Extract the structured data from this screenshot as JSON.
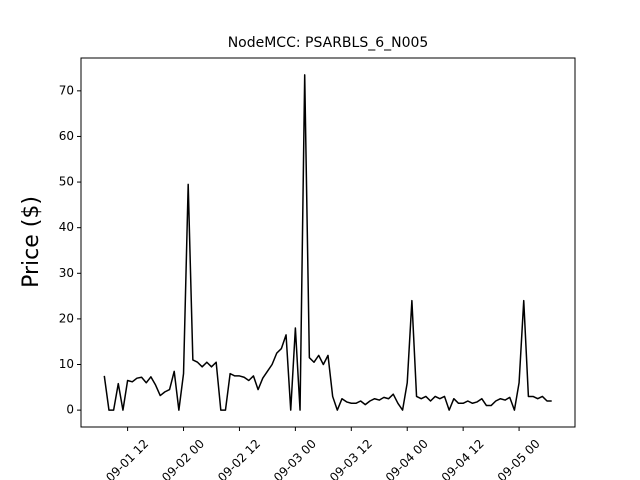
{
  "chart_data": {
    "type": "line",
    "title": "NodeMCC: PSARBLS_6_N005",
    "y_label": "Price ($)",
    "x": [
      "09-01 07",
      "09-01 08",
      "09-01 09",
      "09-01 10",
      "09-01 11",
      "09-01 12",
      "09-01 13",
      "09-01 14",
      "09-01 15",
      "09-01 16",
      "09-01 17",
      "09-01 18",
      "09-01 19",
      "09-01 20",
      "09-01 21",
      "09-01 22",
      "09-01 23",
      "09-02 00",
      "09-02 01",
      "09-02 02",
      "09-02 03",
      "09-02 04",
      "09-02 05",
      "09-02 06",
      "09-02 07",
      "09-02 08",
      "09-02 09",
      "09-02 10",
      "09-02 11",
      "09-02 12",
      "09-02 13",
      "09-02 14",
      "09-02 15",
      "09-02 16",
      "09-02 17",
      "09-02 18",
      "09-02 19",
      "09-02 20",
      "09-02 21",
      "09-02 22",
      "09-02 23",
      "09-03 00",
      "09-03 01",
      "09-03 02",
      "09-03 03",
      "09-03 04",
      "09-03 05",
      "09-03 06",
      "09-03 07",
      "09-03 08",
      "09-03 09",
      "09-03 10",
      "09-03 11",
      "09-03 12",
      "09-03 13",
      "09-03 14",
      "09-03 15",
      "09-03 16",
      "09-03 17",
      "09-03 18",
      "09-03 19",
      "09-03 20",
      "09-03 21",
      "09-03 22",
      "09-03 23",
      "09-04 00",
      "09-04 01",
      "09-04 02",
      "09-04 03",
      "09-04 04",
      "09-04 05",
      "09-04 06",
      "09-04 07",
      "09-04 08",
      "09-04 09",
      "09-04 10",
      "09-04 11",
      "09-04 12",
      "09-04 13",
      "09-04 14",
      "09-04 15",
      "09-04 16",
      "09-04 17",
      "09-04 18",
      "09-04 19",
      "09-04 20",
      "09-04 21",
      "09-04 22",
      "09-04 23",
      "09-05 00",
      "09-05 01",
      "09-05 02",
      "09-05 03",
      "09-05 04",
      "09-05 05",
      "09-05 06",
      "09-05 07"
    ],
    "series": [
      {
        "color": "#000000",
        "values": [
          7.5,
          0,
          0,
          5.8,
          0,
          6.5,
          6.2,
          7,
          7.2,
          6,
          7.3,
          5.5,
          3.2,
          4,
          4.5,
          8.5,
          0,
          8,
          49.5,
          11,
          10.5,
          9.5,
          10.5,
          9.5,
          10.5,
          0,
          0,
          8,
          7.5,
          7.5,
          7.2,
          6.5,
          7.5,
          4.5,
          7,
          8.5,
          10,
          12.5,
          13.5,
          16.5,
          0,
          18,
          0,
          73.5,
          11.5,
          10.5,
          12,
          10,
          12,
          3,
          0,
          2.5,
          1.8,
          1.5,
          1.5,
          2,
          1.2,
          2,
          2.5,
          2.2,
          2.8,
          2.5,
          3.5,
          1.5,
          0,
          6,
          24,
          3,
          2.5,
          3,
          2,
          3,
          2.5,
          3,
          0,
          2.5,
          1.5,
          1.5,
          2,
          1.5,
          1.8,
          2.5,
          1,
          1,
          2,
          2.5,
          2.2,
          2.8,
          0,
          6,
          24,
          3,
          3,
          2.5,
          3,
          2,
          2
        ]
      }
    ],
    "xlim": [
      "09-01 02",
      "09-05 12"
    ],
    "xticks": [
      "09-01 12",
      "09-02 00",
      "09-02 12",
      "09-03 00",
      "09-03 12",
      "09-04 00",
      "09-04 12",
      "09-05 00"
    ],
    "ylim": [
      -3.7,
      77.2
    ],
    "yticks": [
      0,
      10,
      20,
      30,
      40,
      50,
      60,
      70
    ],
    "grid": false
  }
}
